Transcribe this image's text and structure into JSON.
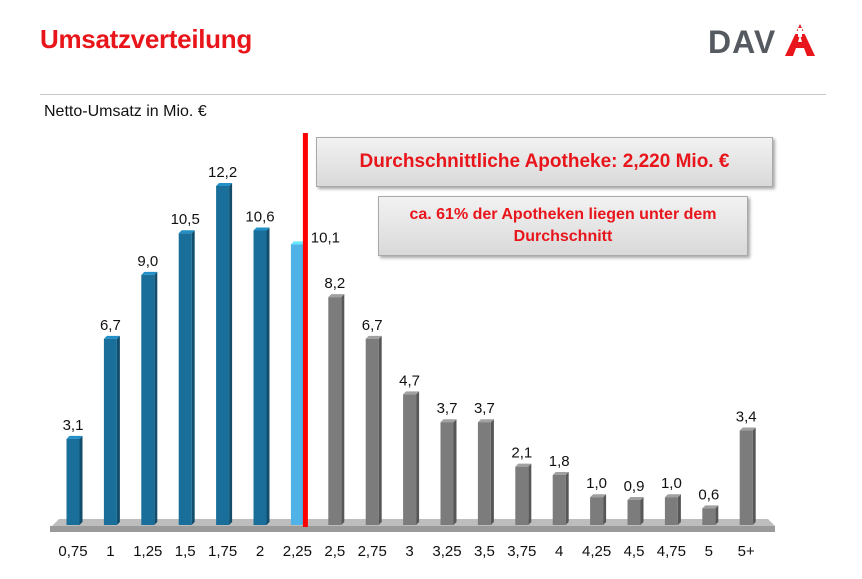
{
  "header": {
    "title": "Umsatzverteilung",
    "logo_text": "DAV",
    "logo_icon": "apotheke-a-icon"
  },
  "annotations": {
    "average_box": "Durchschnittliche Apotheke: 2,220 Mio. €",
    "share_box": "ca. 61% der Apotheken liegen unter dem Durchschnitt"
  },
  "colors": {
    "title_red": "#e8151b",
    "below_avg": "#1a6f9a",
    "at_avg": "#4fb3e8",
    "above_avg": "#7c7c7c",
    "avg_line": "#ff0000"
  },
  "chart_data": {
    "type": "bar",
    "ylabel": "Netto-Umsatz in Mio. €",
    "categories": [
      "0,75",
      "1",
      "1,25",
      "1,5",
      "1,75",
      "2",
      "2,25",
      "2,5",
      "2,75",
      "3",
      "3,25",
      "3,5",
      "3,75",
      "4",
      "4,25",
      "4,5",
      "4,75",
      "5",
      "5+"
    ],
    "values": [
      3.1,
      6.7,
      9.0,
      10.5,
      12.2,
      10.6,
      10.1,
      8.2,
      6.7,
      4.7,
      3.7,
      3.7,
      2.1,
      1.8,
      1.0,
      0.9,
      1.0,
      0.6,
      3.4
    ],
    "value_labels": [
      "3,1",
      "6,7",
      "9,0",
      "10,5",
      "12,2",
      "10,6",
      "10,1",
      "8,2",
      "6,7",
      "4,7",
      "3,7",
      "3,7",
      "2,1",
      "1,8",
      "1,0",
      "0,9",
      "1,0",
      "0,6",
      "3,4"
    ],
    "bar_groups": [
      "below",
      "below",
      "below",
      "below",
      "below",
      "below",
      "at",
      "above",
      "above",
      "above",
      "above",
      "above",
      "above",
      "above",
      "above",
      "above",
      "above",
      "above",
      "above"
    ],
    "average_marker_category": "2,25",
    "ylim": [
      0,
      12.5
    ],
    "grid": false,
    "legend": "none"
  }
}
